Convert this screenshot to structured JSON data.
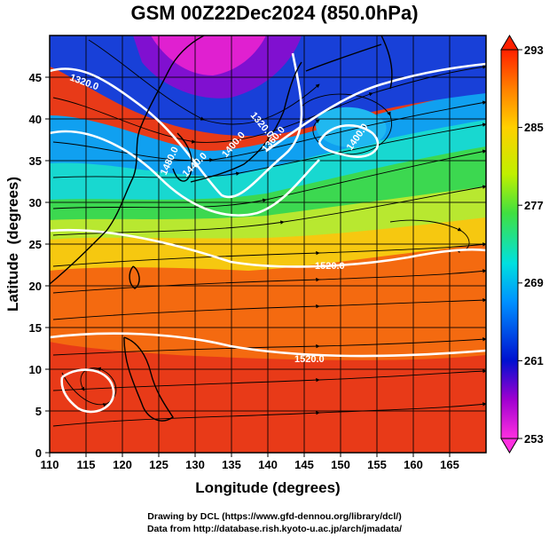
{
  "title": "GSM 00Z22Dec2024 (850.0hPa)",
  "axes": {
    "xlabel": "Longitude (degrees)",
    "ylabel": "Latitude  (degrees)",
    "xlim": [
      110,
      170
    ],
    "ylim": [
      0,
      50
    ],
    "xticks": [
      "110",
      "115",
      "120",
      "125",
      "130",
      "135",
      "140",
      "145",
      "150",
      "155",
      "160",
      "165"
    ],
    "yticks": [
      "0",
      "5",
      "10",
      "15",
      "20",
      "25",
      "30",
      "35",
      "40",
      "45"
    ]
  },
  "colorbar": {
    "min": 253,
    "max": 293,
    "labels": [
      "293",
      "285",
      "277",
      "269",
      "261",
      "253"
    ],
    "colors": [
      "#ff30e0",
      "#6000d0",
      "#0010d0",
      "#0090ff",
      "#00e0e0",
      "#40e040",
      "#c0f000",
      "#ffd000",
      "#ff8000",
      "#ff2000"
    ]
  },
  "contours": [
    {
      "label": "1320.0"
    },
    {
      "label": "1320.0"
    },
    {
      "label": "1360.0"
    },
    {
      "label": "1400.0"
    },
    {
      "label": "1440.0"
    },
    {
      "label": "1480.0"
    },
    {
      "label": "1400.0"
    },
    {
      "label": "1520.0"
    },
    {
      "label": "1520.0"
    }
  ],
  "credits": {
    "line1": "Drawing by DCL (https://www.gfd-dennou.org/library/dcl/)",
    "line2": "Data from http://database.rish.kyoto-u.ac.jp/arch/jmadata/"
  }
}
